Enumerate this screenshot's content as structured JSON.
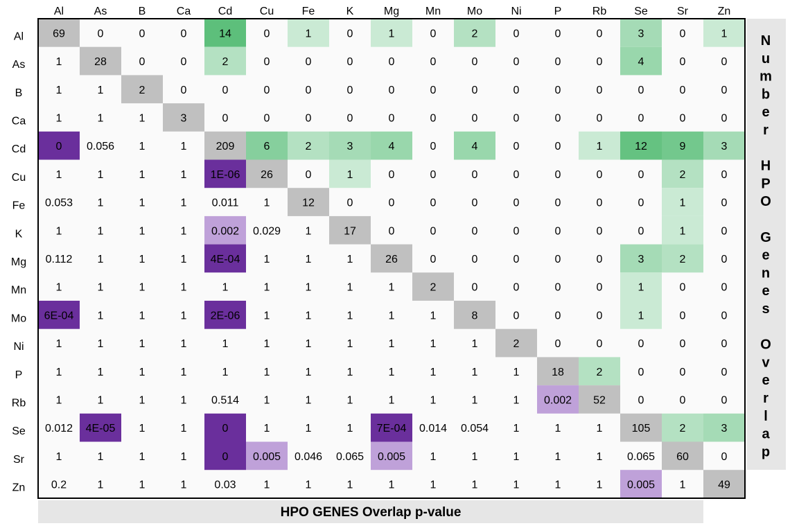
{
  "chart_data": {
    "type": "heatmap",
    "elements": [
      "Al",
      "As",
      "B",
      "Ca",
      "Cd",
      "Cu",
      "Fe",
      "K",
      "Mg",
      "Mn",
      "Mo",
      "Ni",
      "P",
      "Rb",
      "Se",
      "Sr",
      "Zn"
    ],
    "cells": [
      [
        "69",
        "0",
        "0",
        "0",
        "14",
        "0",
        "1",
        "0",
        "1",
        "0",
        "2",
        "0",
        "0",
        "0",
        "3",
        "0",
        "1"
      ],
      [
        "1",
        "28",
        "0",
        "0",
        "2",
        "0",
        "0",
        "0",
        "0",
        "0",
        "0",
        "0",
        "0",
        "0",
        "4",
        "0",
        "0"
      ],
      [
        "1",
        "1",
        "2",
        "0",
        "0",
        "0",
        "0",
        "0",
        "0",
        "0",
        "0",
        "0",
        "0",
        "0",
        "0",
        "0",
        "0"
      ],
      [
        "1",
        "1",
        "1",
        "3",
        "0",
        "0",
        "0",
        "0",
        "0",
        "0",
        "0",
        "0",
        "0",
        "0",
        "0",
        "0",
        "0"
      ],
      [
        "0",
        "0.056",
        "1",
        "1",
        "209",
        "6",
        "2",
        "3",
        "4",
        "0",
        "4",
        "0",
        "0",
        "1",
        "12",
        "9",
        "3"
      ],
      [
        "1",
        "1",
        "1",
        "1",
        "1E-06",
        "26",
        "0",
        "1",
        "0",
        "0",
        "0",
        "0",
        "0",
        "0",
        "0",
        "2",
        "0"
      ],
      [
        "0.053",
        "1",
        "1",
        "1",
        "0.011",
        "1",
        "12",
        "0",
        "0",
        "0",
        "0",
        "0",
        "0",
        "0",
        "0",
        "1",
        "0"
      ],
      [
        "1",
        "1",
        "1",
        "1",
        "0.002",
        "0.029",
        "1",
        "17",
        "0",
        "0",
        "0",
        "0",
        "0",
        "0",
        "0",
        "1",
        "0"
      ],
      [
        "0.112",
        "1",
        "1",
        "1",
        "4E-04",
        "1",
        "1",
        "1",
        "26",
        "0",
        "0",
        "0",
        "0",
        "0",
        "3",
        "2",
        "0"
      ],
      [
        "1",
        "1",
        "1",
        "1",
        "1",
        "1",
        "1",
        "1",
        "1",
        "2",
        "0",
        "0",
        "0",
        "0",
        "1",
        "0",
        "0"
      ],
      [
        "6E-04",
        "1",
        "1",
        "1",
        "2E-06",
        "1",
        "1",
        "1",
        "1",
        "1",
        "8",
        "0",
        "0",
        "0",
        "1",
        "0",
        "0"
      ],
      [
        "1",
        "1",
        "1",
        "1",
        "1",
        "1",
        "1",
        "1",
        "1",
        "1",
        "1",
        "2",
        "0",
        "0",
        "0",
        "0",
        "0"
      ],
      [
        "1",
        "1",
        "1",
        "1",
        "1",
        "1",
        "1",
        "1",
        "1",
        "1",
        "1",
        "1",
        "18",
        "2",
        "0",
        "0",
        "0"
      ],
      [
        "1",
        "1",
        "1",
        "1",
        "0.514",
        "1",
        "1",
        "1",
        "1",
        "1",
        "1",
        "1",
        "0.002",
        "52",
        "0",
        "0",
        "0"
      ],
      [
        "0.012",
        "4E-05",
        "1",
        "1",
        "0",
        "1",
        "1",
        "1",
        "7E-04",
        "0.014",
        "0.054",
        "1",
        "1",
        "1",
        "105",
        "2",
        "3"
      ],
      [
        "1",
        "1",
        "1",
        "1",
        "0",
        "0.005",
        "0.046",
        "0.065",
        "0.005",
        "1",
        "1",
        "1",
        "1",
        "1",
        "0.065",
        "60",
        "0"
      ],
      [
        "0.2",
        "1",
        "1",
        "1",
        "0.03",
        "1",
        "1",
        "1",
        "1",
        "1",
        "1",
        "1",
        "1",
        "1",
        "0.005",
        "1",
        "49"
      ]
    ],
    "upper_triangle_label": "Number HPO Genes Overlap",
    "lower_triangle_label": "HPO GENES Overlap p-value",
    "colors": {
      "diagonal": "#c0c0c0",
      "upper_low": "#f0f9f3",
      "upper_high": "#5dbf7b",
      "lower_light": "#bfa1d9",
      "lower_dark": "#6a2f9c",
      "background": "#fafafa",
      "label_band": "#e6e6e6"
    }
  }
}
